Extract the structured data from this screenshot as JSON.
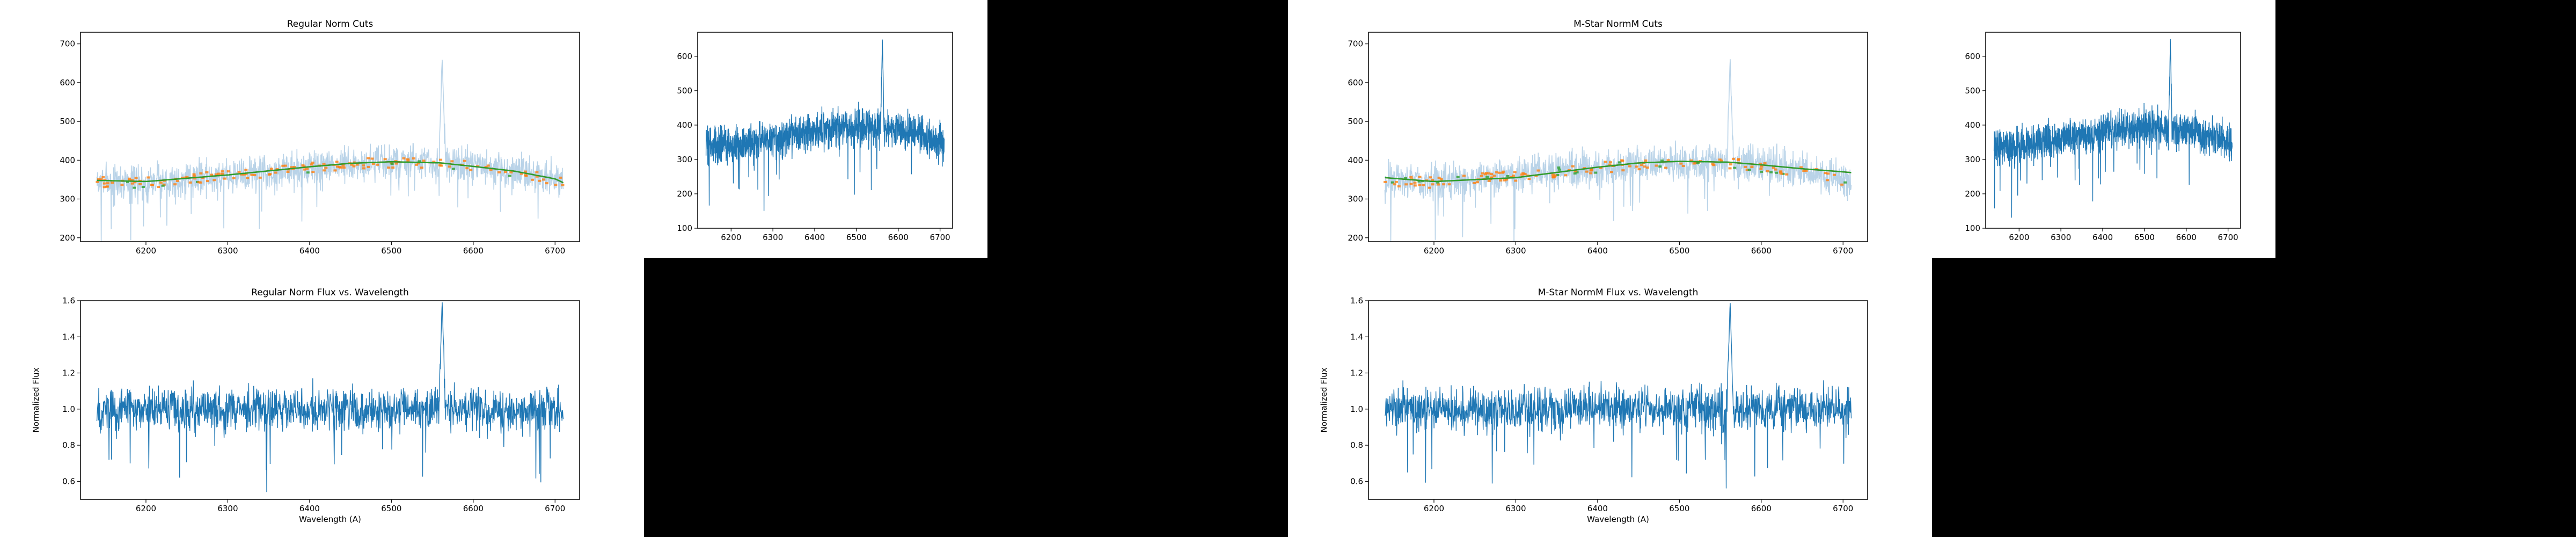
{
  "colors": {
    "spectrum": "#1f77b4",
    "spectrum_faint": "#b9d3e8",
    "cut_points": "#ff7f0e",
    "cut_rejected": "#2ca02c",
    "fit": "#2ca02c",
    "fit_alt": "#d62728",
    "background": "#000000"
  },
  "chart_data": [
    {
      "id": "regular-cuts",
      "type": "line",
      "title": "Regular Norm Cuts",
      "xlabel": "",
      "ylabel": "",
      "xlim": [
        6120,
        6730
      ],
      "ylim": [
        190,
        730
      ],
      "xticks": [
        6200,
        6300,
        6400,
        6500,
        6600,
        6700
      ],
      "yticks": [
        200,
        300,
        400,
        500,
        600,
        700
      ],
      "xtick_labels": [
        "6200",
        "6300",
        "6400",
        "6500",
        "6600",
        "6700"
      ],
      "ytick_labels": [
        "200",
        "300",
        "400",
        "500",
        "600",
        "700"
      ],
      "spectrum_range": [
        6140,
        6710
      ],
      "continuum_x": [
        6140,
        6200,
        6300,
        6400,
        6450,
        6500,
        6560,
        6600,
        6650,
        6700,
        6710
      ],
      "continuum_y": [
        345,
        342,
        360,
        380,
        390,
        395,
        392,
        383,
        372,
        350,
        340
      ],
      "noise": 35,
      "emission_line": {
        "x": 6562,
        "peak": 665
      },
      "show_fit": true,
      "fit_y": [
        348,
        345,
        362,
        383,
        392,
        396,
        393,
        384,
        372,
        352,
        342
      ],
      "faint": true
    },
    {
      "id": "regular-raw",
      "type": "line",
      "title": "",
      "xlabel": "",
      "ylabel": "",
      "xlim": [
        6120,
        6730
      ],
      "ylim": [
        100,
        670
      ],
      "xticks": [
        6200,
        6300,
        6400,
        6500,
        6600,
        6700
      ],
      "yticks": [
        100,
        200,
        300,
        400,
        500,
        600
      ],
      "xtick_labels": [
        "6200",
        "6300",
        "6400",
        "6500",
        "6600",
        "6700"
      ],
      "ytick_labels": [
        "100",
        "200",
        "300",
        "400",
        "500",
        "600"
      ],
      "spectrum_range": [
        6140,
        6710
      ],
      "continuum_x": [
        6140,
        6200,
        6300,
        6400,
        6450,
        6500,
        6560,
        6600,
        6650,
        6700,
        6710
      ],
      "continuum_y": [
        345,
        342,
        360,
        380,
        390,
        395,
        392,
        383,
        372,
        350,
        340
      ],
      "noise": 40,
      "emission_line": {
        "x": 6562,
        "peak": 655
      },
      "show_fit": false,
      "faint": false
    },
    {
      "id": "regular-norm",
      "type": "line",
      "title": "Regular Norm Flux vs. Wavelength",
      "xlabel": "Wavelength (A)",
      "ylabel": "Normalized Flux",
      "xlim": [
        6120,
        6730
      ],
      "ylim": [
        0.5,
        1.6
      ],
      "xticks": [
        6200,
        6300,
        6400,
        6500,
        6600,
        6700
      ],
      "yticks": [
        0.6,
        0.8,
        1.0,
        1.2,
        1.4,
        1.6
      ],
      "xtick_labels": [
        "6200",
        "6300",
        "6400",
        "6500",
        "6600",
        "6700"
      ],
      "ytick_labels": [
        "0.6",
        "0.8",
        "1.0",
        "1.2",
        "1.4",
        "1.6"
      ],
      "spectrum_range": [
        6140,
        6710
      ],
      "continuum_x": [
        6140,
        6710
      ],
      "continuum_y": [
        1.0,
        1.0
      ],
      "noise": 0.09,
      "emission_line": {
        "x": 6562,
        "peak": 1.6
      },
      "show_fit": false,
      "faint": false
    },
    {
      "id": "mstar-cuts",
      "type": "line",
      "title": "M-Star NormM Cuts",
      "xlabel": "",
      "ylabel": "",
      "xlim": [
        6120,
        6730
      ],
      "ylim": [
        190,
        730
      ],
      "xticks": [
        6200,
        6300,
        6400,
        6500,
        6600,
        6700
      ],
      "yticks": [
        200,
        300,
        400,
        500,
        600,
        700
      ],
      "xtick_labels": [
        "6200",
        "6300",
        "6400",
        "6500",
        "6600",
        "6700"
      ],
      "ytick_labels": [
        "200",
        "300",
        "400",
        "500",
        "600",
        "700"
      ],
      "spectrum_range": [
        6140,
        6710
      ],
      "continuum_x": [
        6140,
        6200,
        6300,
        6400,
        6450,
        6500,
        6560,
        6600,
        6650,
        6700,
        6710
      ],
      "continuum_y": [
        345,
        342,
        360,
        380,
        390,
        395,
        392,
        383,
        372,
        350,
        340
      ],
      "noise": 35,
      "emission_line": {
        "x": 6562,
        "peak": 665
      },
      "show_fit": true,
      "fit_y": [
        355,
        345,
        355,
        382,
        393,
        397,
        395,
        388,
        378,
        370,
        368
      ],
      "faint": true
    },
    {
      "id": "mstar-raw",
      "type": "line",
      "title": "",
      "xlabel": "",
      "ylabel": "",
      "xlim": [
        6120,
        6730
      ],
      "ylim": [
        100,
        670
      ],
      "xticks": [
        6200,
        6300,
        6400,
        6500,
        6600,
        6700
      ],
      "yticks": [
        100,
        200,
        300,
        400,
        500,
        600
      ],
      "xtick_labels": [
        "6200",
        "6300",
        "6400",
        "6500",
        "6600",
        "6700"
      ],
      "ytick_labels": [
        "100",
        "200",
        "300",
        "400",
        "500",
        "600"
      ],
      "spectrum_range": [
        6140,
        6710
      ],
      "continuum_x": [
        6140,
        6200,
        6300,
        6400,
        6450,
        6500,
        6560,
        6600,
        6650,
        6700,
        6710
      ],
      "continuum_y": [
        345,
        342,
        360,
        380,
        390,
        395,
        392,
        383,
        372,
        350,
        340
      ],
      "noise": 40,
      "emission_line": {
        "x": 6562,
        "peak": 655
      },
      "show_fit": false,
      "faint": false
    },
    {
      "id": "mstar-norm",
      "type": "line",
      "title": "M-Star NormM Flux vs. Wavelength",
      "xlabel": "Wavelength (A)",
      "ylabel": "Normalized Flux",
      "xlim": [
        6120,
        6730
      ],
      "ylim": [
        0.5,
        1.6
      ],
      "xticks": [
        6200,
        6300,
        6400,
        6500,
        6600,
        6700
      ],
      "yticks": [
        0.6,
        0.8,
        1.0,
        1.2,
        1.4,
        1.6
      ],
      "xtick_labels": [
        "6200",
        "6300",
        "6400",
        "6500",
        "6600",
        "6700"
      ],
      "ytick_labels": [
        "0.6",
        "0.8",
        "1.0",
        "1.2",
        "1.4",
        "1.6"
      ],
      "spectrum_range": [
        6140,
        6710
      ],
      "continuum_x": [
        6140,
        6710
      ],
      "continuum_y": [
        1.0,
        1.0
      ],
      "noise": 0.09,
      "emission_line": {
        "x": 6562,
        "peak": 1.6
      },
      "show_fit": false,
      "faint": false
    }
  ]
}
